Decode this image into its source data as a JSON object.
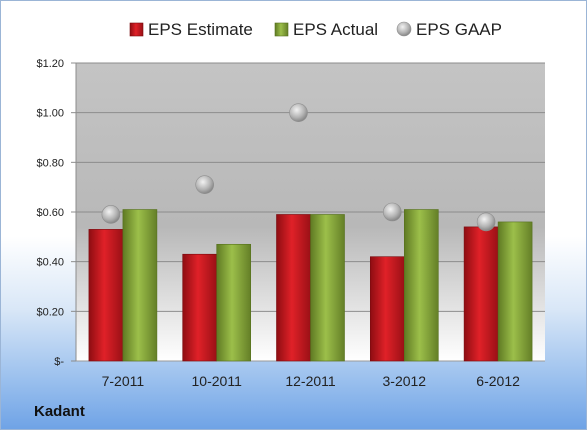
{
  "company": "Kadant",
  "chart_data": {
    "type": "bar",
    "categories": [
      "7-2011",
      "10-2011",
      "12-2011",
      "3-2012",
      "6-2012"
    ],
    "series": [
      {
        "name": "EPS Estimate",
        "kind": "bar",
        "color": "#c8161d",
        "values": [
          0.53,
          0.43,
          0.59,
          0.42,
          0.54
        ]
      },
      {
        "name": "EPS Actual",
        "kind": "bar",
        "color": "#8aab3c",
        "values": [
          0.61,
          0.47,
          0.59,
          0.61,
          0.56
        ]
      },
      {
        "name": "EPS GAAP",
        "kind": "marker",
        "color": "#a8a8a8",
        "values": [
          0.59,
          0.71,
          1.0,
          0.6,
          0.56
        ]
      }
    ],
    "yticks": [
      "$-",
      "$0.20",
      "$0.40",
      "$0.60",
      "$0.80",
      "$1.00",
      "$1.20"
    ],
    "ylim": [
      0,
      1.2
    ],
    "legend_position": "top",
    "grid": true
  }
}
